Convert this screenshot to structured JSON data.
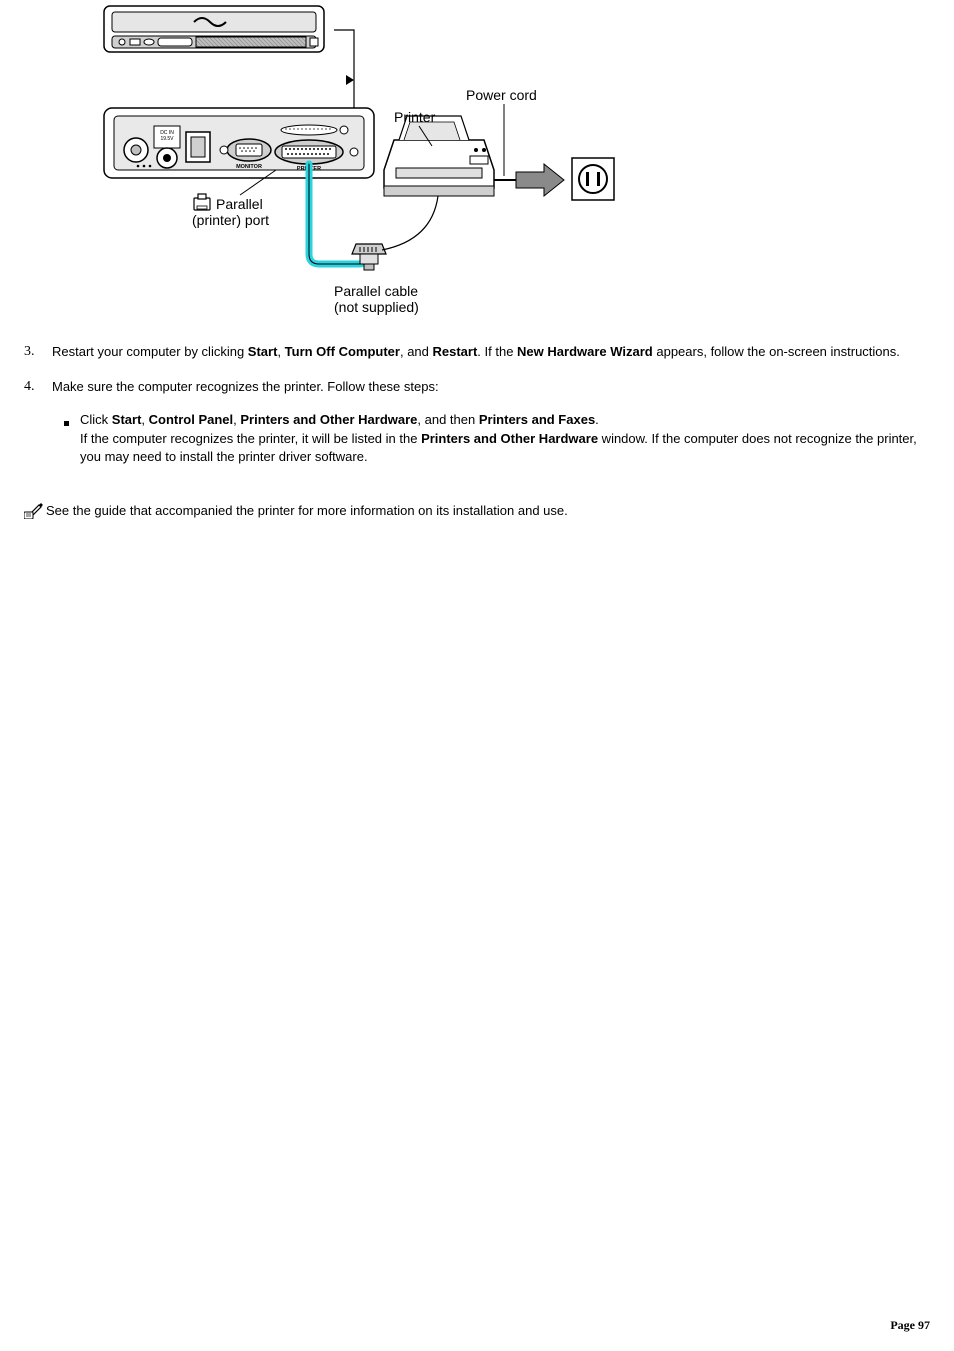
{
  "diagram": {
    "labels": {
      "printer": "Printer",
      "power_cord": "Power cord",
      "parallel_port_line1": "Parallel",
      "parallel_port_line2": "(printer) port",
      "parallel_cable_line1": "Parallel cable",
      "parallel_cable_line2": "(not supplied)"
    },
    "colors": {
      "highlight": "#29d3e0",
      "line": "#000000",
      "fill_light": "#ffffff",
      "fill_gray": "#bfbfbf",
      "fill_darkgray": "#8a8a8a",
      "text": "#000000"
    }
  },
  "steps": {
    "s3": {
      "num": "3.",
      "parts": [
        {
          "t": "Restart your computer by clicking "
        },
        {
          "t": "Start",
          "b": true
        },
        {
          "t": ", "
        },
        {
          "t": "Turn Off Computer",
          "b": true
        },
        {
          "t": ", and "
        },
        {
          "t": "Restart",
          "b": true
        },
        {
          "t": ". If the "
        },
        {
          "t": "New Hardware Wizard",
          "b": true
        },
        {
          "t": " appears, follow the on-screen instructions."
        }
      ]
    },
    "s4": {
      "num": "4.",
      "intro": "Make sure the computer recognizes the printer. Follow these steps:",
      "bullet": {
        "line1_parts": [
          {
            "t": "Click "
          },
          {
            "t": "Start",
            "b": true
          },
          {
            "t": ", "
          },
          {
            "t": "Control Panel",
            "b": true
          },
          {
            "t": ", "
          },
          {
            "t": "Printers and Other Hardware",
            "b": true
          },
          {
            "t": ", and then "
          },
          {
            "t": "Printers and Faxes",
            "b": true
          },
          {
            "t": "."
          }
        ],
        "line2_parts": [
          {
            "t": "If the computer recognizes the printer, it will be listed in the "
          },
          {
            "t": "Printers and Other Hardware",
            "b": true
          },
          {
            "t": " window. If the computer does not recognize the printer, you may need to install the printer driver software."
          }
        ]
      }
    }
  },
  "note": {
    "text": "See the guide that accompanied the printer for more information on its installation and use."
  },
  "footer": {
    "page_label": "Page 97"
  }
}
